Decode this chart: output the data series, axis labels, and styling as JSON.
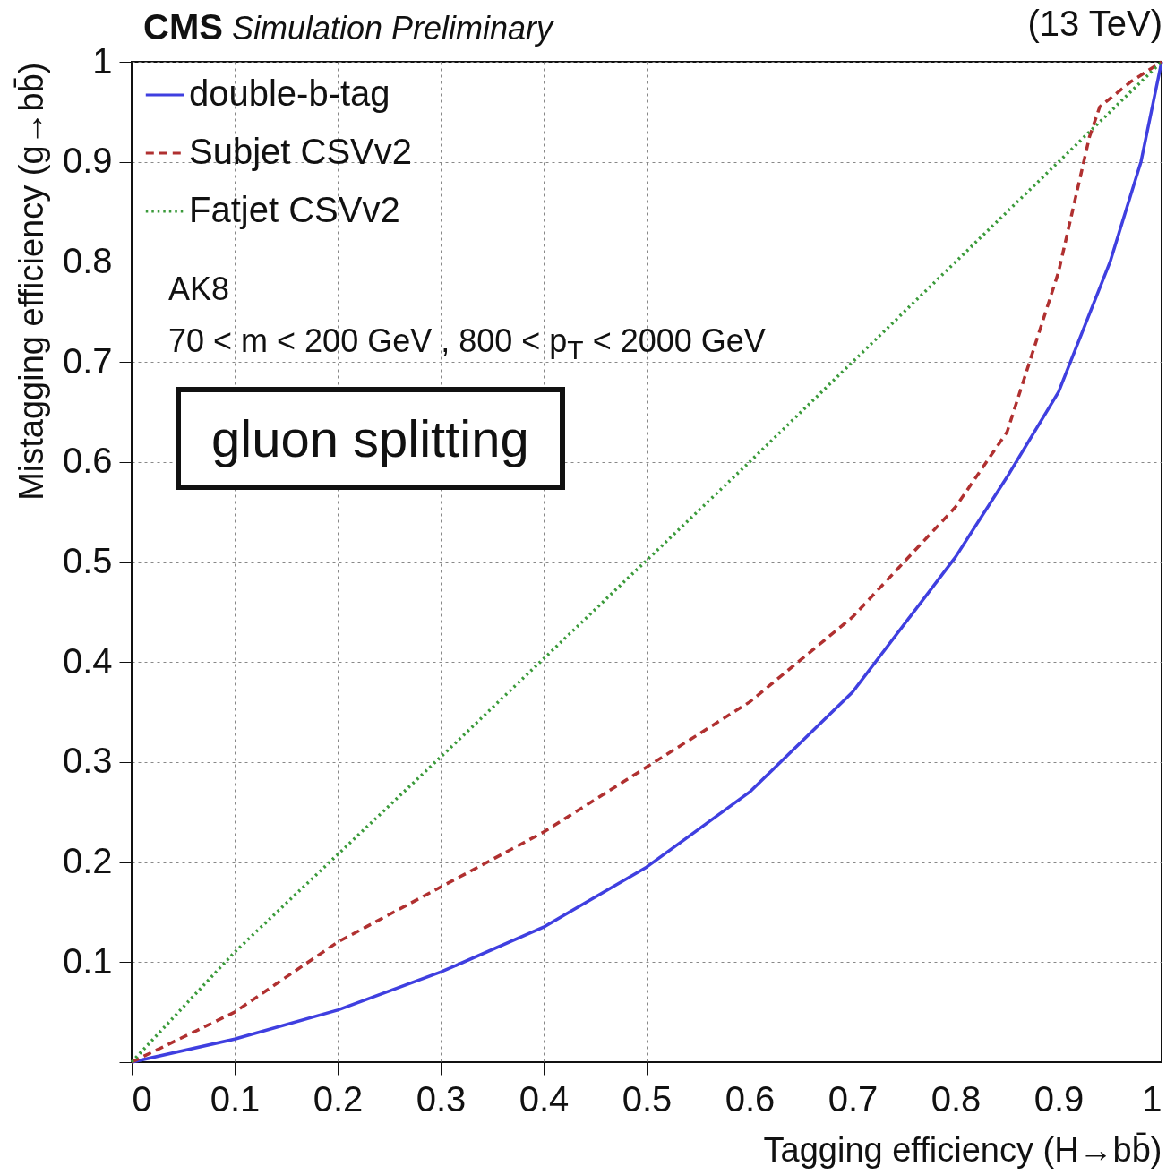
{
  "chart_data": {
    "type": "line",
    "title": "CMS",
    "subtitle": "Simulation Preliminary",
    "xlabel": "Tagging efficiency (H→bb̄)",
    "ylabel": "Mistagging efficiency (g→bb̄)",
    "xlim": [
      0,
      1
    ],
    "ylim": [
      0,
      1
    ],
    "xticks": [
      0,
      0.1,
      0.2,
      0.3,
      0.4,
      0.5,
      0.6,
      0.7,
      0.8,
      0.9,
      1
    ],
    "yticks": [
      {
        "value": 0,
        "label": null
      },
      0.1,
      0.2,
      0.3,
      0.4,
      0.5,
      0.6,
      0.7,
      0.8,
      0.9,
      1
    ],
    "grid": true,
    "legend": "top left",
    "annotations": [
      "(13 TeV)",
      "AK8",
      "70 < m < 200 GeV , 800 < p$_{T}$ < 2000 GeV",
      "gluon splitting"
    ],
    "series": [
      {
        "name": "double-b-tag",
        "color": "#3f3fe0",
        "line_style": "solid",
        "x": [
          0,
          0.1,
          0.2,
          0.3,
          0.4,
          0.5,
          0.6,
          0.7,
          0.8,
          0.85,
          0.9,
          0.95,
          0.98,
          1
        ],
        "values": [
          0,
          0.023,
          0.052,
          0.09,
          0.135,
          0.195,
          0.27,
          0.37,
          0.505,
          0.585,
          0.67,
          0.8,
          0.9,
          1
        ]
      },
      {
        "name": "Subjet CSVv2",
        "color": "#b03030",
        "line_style": "dashed",
        "x": [
          0,
          0.1,
          0.2,
          0.3,
          0.4,
          0.5,
          0.6,
          0.7,
          0.8,
          0.85,
          0.9,
          0.93,
          0.94,
          0.97,
          1
        ],
        "values": [
          0,
          0.05,
          0.12,
          0.175,
          0.23,
          0.295,
          0.36,
          0.445,
          0.555,
          0.63,
          0.79,
          0.925,
          0.955,
          0.98,
          1
        ]
      },
      {
        "name": "Fatjet CSVv2",
        "color": "#3a9a3a",
        "line_style": "dotted",
        "x": [
          0,
          0.05,
          0.1,
          0.3,
          0.6,
          0.9,
          1
        ],
        "values": [
          0,
          0.055,
          0.11,
          0.305,
          0.6,
          0.9,
          1
        ]
      }
    ]
  }
}
